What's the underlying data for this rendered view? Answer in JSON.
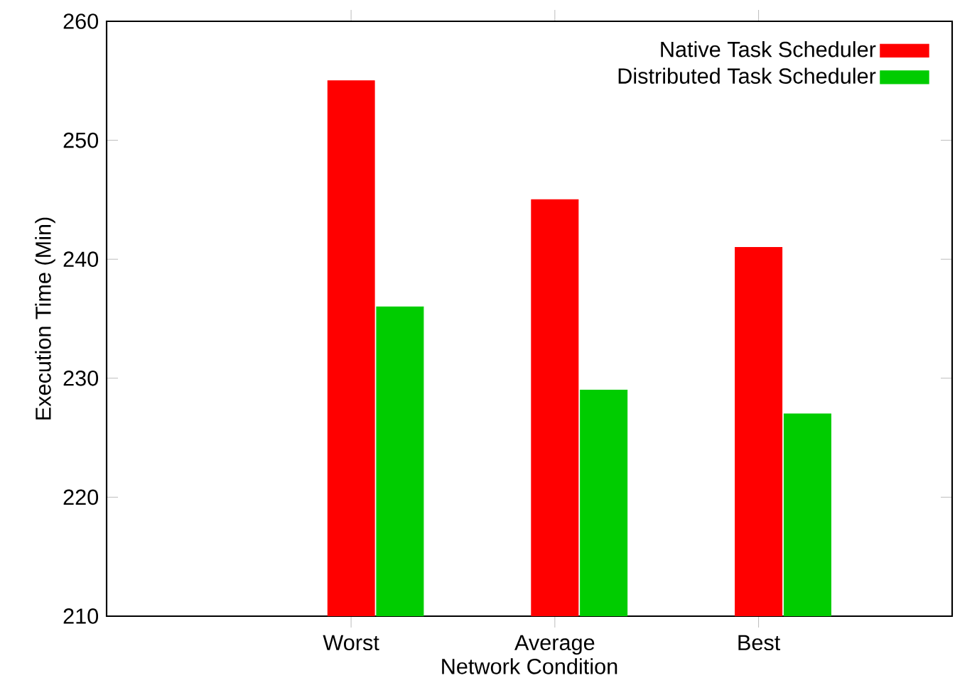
{
  "chart_data": {
    "type": "bar",
    "xlabel": "Network Condition",
    "ylabel": "Execution Time (Min)",
    "categories": [
      "Worst",
      "Average",
      "Best"
    ],
    "series": [
      {
        "name": "Native Task Scheduler",
        "color": "#ff0000",
        "values": [
          255,
          245,
          241
        ]
      },
      {
        "name": "Distributed Task Scheduler",
        "color": "#00cc00",
        "values": [
          236,
          229,
          227
        ]
      }
    ],
    "ylim": [
      210,
      260
    ],
    "yticks": [
      210,
      220,
      230,
      240,
      250,
      260
    ],
    "grid": false,
    "legend": "top right"
  }
}
